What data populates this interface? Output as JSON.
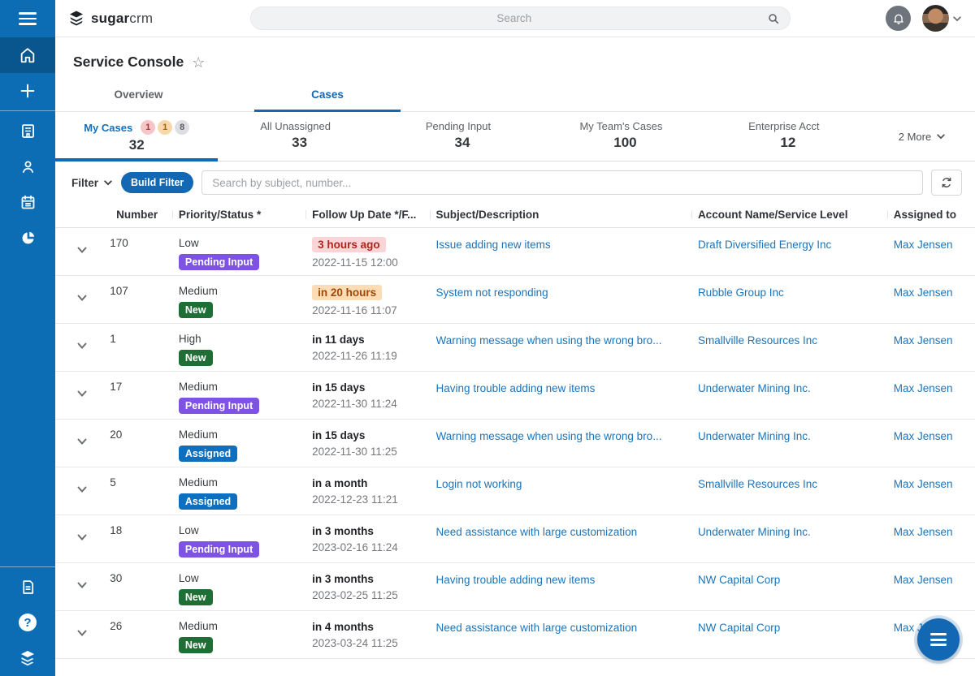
{
  "brand": {
    "logo_bold": "sugar",
    "logo_light": "crm"
  },
  "header": {
    "search_placeholder": "Search"
  },
  "sidebar": {
    "items_top": [
      "menu",
      "home",
      "add",
      "accounts",
      "contacts",
      "calendar",
      "reports"
    ],
    "items_bottom": [
      "notes",
      "help",
      "sugar-university"
    ]
  },
  "page": {
    "title": "Service Console"
  },
  "tabs": [
    {
      "label": "Overview",
      "active": false
    },
    {
      "label": "Cases",
      "active": true
    }
  ],
  "subtabs": [
    {
      "label": "My Cases",
      "count": "32",
      "active": true,
      "badges": [
        {
          "text": "1",
          "type": "danger"
        },
        {
          "text": "1",
          "type": "warning"
        },
        {
          "text": "8",
          "type": "neutral"
        }
      ]
    },
    {
      "label": "All Unassigned",
      "count": "33",
      "active": false,
      "badges": []
    },
    {
      "label": "Pending Input",
      "count": "34",
      "active": false,
      "badges": []
    },
    {
      "label": "My Team's Cases",
      "count": "100",
      "active": false,
      "badges": []
    },
    {
      "label": "Enterprise Acct",
      "count": "12",
      "active": false,
      "badges": []
    }
  ],
  "more_tabs": {
    "label": "2 More"
  },
  "filter": {
    "label": "Filter",
    "build_button": "Build Filter",
    "search_placeholder": "Search by subject, number..."
  },
  "table": {
    "columns": [
      "Number",
      "Priority/Status *",
      "Follow Up Date */F...",
      "Subject/Description",
      "Account Name/Service Level",
      "Assigned to"
    ],
    "rows": [
      {
        "number": "170",
        "priority": "Low",
        "status": "Pending Input",
        "status_type": "pending",
        "due_relative": "3 hours ago",
        "due_style": "danger",
        "due_date": "2022-11-15 12:00",
        "subject": "Issue adding new items",
        "account": "Draft Diversified Energy Inc",
        "assigned": "Max Jensen"
      },
      {
        "number": "107",
        "priority": "Medium",
        "status": "New",
        "status_type": "new",
        "due_relative": "in 20 hours",
        "due_style": "warning",
        "due_date": "2022-11-16 11:07",
        "subject": "System not responding",
        "account": "Rubble Group Inc",
        "assigned": "Max Jensen"
      },
      {
        "number": "1",
        "priority": "High",
        "status": "New",
        "status_type": "new",
        "due_relative": "in 11 days",
        "due_style": "plain",
        "due_date": "2022-11-26 11:19",
        "subject": "Warning message when using the wrong bro...",
        "account": "Smallville Resources Inc",
        "assigned": "Max Jensen"
      },
      {
        "number": "17",
        "priority": "Medium",
        "status": "Pending Input",
        "status_type": "pending",
        "due_relative": "in 15 days",
        "due_style": "plain",
        "due_date": "2022-11-30 11:24",
        "subject": "Having trouble adding new items",
        "account": "Underwater Mining Inc.",
        "assigned": "Max Jensen"
      },
      {
        "number": "20",
        "priority": "Medium",
        "status": "Assigned",
        "status_type": "assigned",
        "due_relative": "in 15 days",
        "due_style": "plain",
        "due_date": "2022-11-30 11:25",
        "subject": "Warning message when using the wrong bro...",
        "account": "Underwater Mining Inc.",
        "assigned": "Max Jensen"
      },
      {
        "number": "5",
        "priority": "Medium",
        "status": "Assigned",
        "status_type": "assigned",
        "due_relative": "in a month",
        "due_style": "plain",
        "due_date": "2022-12-23 11:21",
        "subject": "Login not working",
        "account": "Smallville Resources Inc",
        "assigned": "Max Jensen"
      },
      {
        "number": "18",
        "priority": "Low",
        "status": "Pending Input",
        "status_type": "pending",
        "due_relative": "in 3 months",
        "due_style": "plain",
        "due_date": "2023-02-16 11:24",
        "subject": "Need assistance with large customization",
        "account": "Underwater Mining Inc.",
        "assigned": "Max Jensen"
      },
      {
        "number": "30",
        "priority": "Low",
        "status": "New",
        "status_type": "new",
        "due_relative": "in 3 months",
        "due_style": "plain",
        "due_date": "2023-02-25 11:25",
        "subject": "Having trouble adding new items",
        "account": "NW Capital Corp",
        "assigned": "Max Jensen"
      },
      {
        "number": "26",
        "priority": "Medium",
        "status": "New",
        "status_type": "new",
        "due_relative": "in 4 months",
        "due_style": "plain",
        "due_date": "2023-03-24 11:25",
        "subject": "Need assistance with large customization",
        "account": "NW Capital Corp",
        "assigned": "Max Jensen"
      }
    ]
  },
  "colors": {
    "accent": "#1268b3",
    "sidebar": "#0c6db4",
    "sidebar_active": "#09568e",
    "link": "#1b74bb",
    "status": {
      "pending": "#7d52e4",
      "new": "#1e6e35",
      "assigned": "#0d6fbf"
    },
    "due": {
      "danger": {
        "bg": "#f9d5d7",
        "text": "#ad251f"
      },
      "warning": {
        "bg": "#fbdcb4",
        "text": "#9c4a0a"
      }
    },
    "subtab_badges": {
      "danger": {
        "bg": "#f6c5c8",
        "text": "#a43a3c"
      },
      "warning": {
        "bg": "#f8d8a8",
        "text": "#9a6420"
      },
      "neutral": {
        "bg": "#dddfe2",
        "text": "#585c61"
      }
    }
  }
}
